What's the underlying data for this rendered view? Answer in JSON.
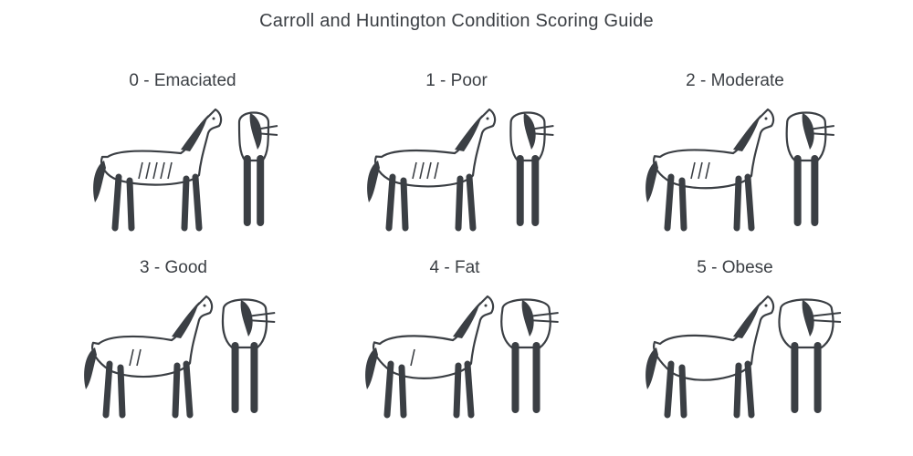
{
  "title": "Carroll and Huntington Condition Scoring Guide",
  "colors": {
    "ink": "#3b3f44",
    "background": "#ffffff"
  },
  "scores": [
    {
      "label": "0 - Emaciated",
      "level": 0
    },
    {
      "label": "1 - Poor",
      "level": 1
    },
    {
      "label": "2 - Moderate",
      "level": 2
    },
    {
      "label": "3 - Good",
      "level": 3
    },
    {
      "label": "4 - Fat",
      "level": 4
    },
    {
      "label": "5 - Obese",
      "level": 5
    }
  ]
}
